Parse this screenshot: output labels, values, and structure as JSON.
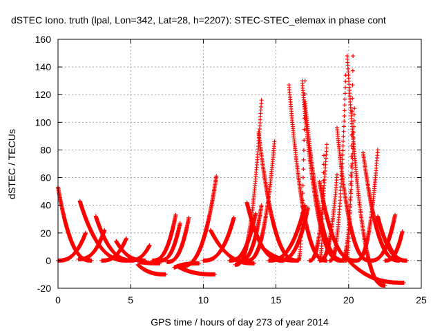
{
  "chart_data": {
    "type": "scatter",
    "title": "dSTEC Iono. truth (lpal, Lon=342, Lat=28, h=2207): STEC-STEC_elemax in phase cont",
    "xlabel": "GPS time / hours of day 273 of year 2014",
    "ylabel": "dSTEC  / TECUs",
    "xlim": [
      0,
      25
    ],
    "ylim": [
      -20,
      160
    ],
    "xticks": [
      0,
      5,
      10,
      15,
      20,
      25
    ],
    "yticks": [
      -20,
      0,
      20,
      40,
      60,
      80,
      100,
      120,
      140,
      160
    ],
    "grid": true,
    "marker": "+",
    "color": "#ff0000",
    "tracks": [
      {
        "t_start": 0.0,
        "t_end": 2.3,
        "v_start": 53,
        "v_end": 0,
        "shape": "descend"
      },
      {
        "t_start": 0.0,
        "t_end": 1.9,
        "v_start": 0,
        "v_end": 20,
        "shape": "ascend"
      },
      {
        "t_start": 1.5,
        "t_end": 4.8,
        "v_start": 43,
        "v_end": 0,
        "shape": "descend"
      },
      {
        "t_start": 1.4,
        "t_end": 3.2,
        "v_start": 1,
        "v_end": 22,
        "shape": "ascend"
      },
      {
        "t_start": 2.6,
        "t_end": 5.2,
        "v_start": 32,
        "v_end": 0,
        "shape": "descend"
      },
      {
        "t_start": 3.0,
        "t_end": 4.7,
        "v_start": 0,
        "v_end": 16,
        "shape": "ascend"
      },
      {
        "t_start": 4.0,
        "t_end": 6.0,
        "v_start": 14,
        "v_end": 0,
        "shape": "descend"
      },
      {
        "t_start": 4.9,
        "t_end": 6.3,
        "v_start": 0,
        "v_end": 11,
        "shape": "ascend"
      },
      {
        "t_start": 5.5,
        "t_end": 7.4,
        "v_start": -3,
        "v_end": -10,
        "shape": "descend"
      },
      {
        "t_start": 6.5,
        "t_end": 8.1,
        "v_start": 0,
        "v_end": 33,
        "shape": "ascend"
      },
      {
        "t_start": 7.0,
        "t_end": 8.4,
        "v_start": 0,
        "v_end": 27,
        "shape": "ascend"
      },
      {
        "t_start": 7.5,
        "t_end": 9.0,
        "v_start": -1,
        "v_end": 31,
        "shape": "ascend"
      },
      {
        "t_start": 8.5,
        "t_end": 10.9,
        "v_start": -4,
        "v_end": 61,
        "shape": "ascend"
      },
      {
        "t_start": 8.2,
        "t_end": 10.8,
        "v_start": -4,
        "v_end": -10,
        "shape": "descend"
      },
      {
        "t_start": 10.0,
        "t_end": 12.1,
        "v_start": 0,
        "v_end": 31,
        "shape": "ascend"
      },
      {
        "t_start": 10.5,
        "t_end": 13.5,
        "v_start": 22,
        "v_end": -2,
        "shape": "descend"
      },
      {
        "t_start": 11.8,
        "t_end": 13.6,
        "v_start": 0,
        "v_end": 34,
        "shape": "ascend"
      },
      {
        "t_start": 12.5,
        "t_end": 14.0,
        "v_start": 0,
        "v_end": 40,
        "shape": "ascend"
      },
      {
        "t_start": 12.2,
        "t_end": 14.0,
        "v_start": -3,
        "v_end": 116,
        "shape": "ascend"
      },
      {
        "t_start": 13.0,
        "t_end": 15.5,
        "v_start": 42,
        "v_end": 0,
        "shape": "descend"
      },
      {
        "t_start": 13.8,
        "t_end": 16.5,
        "v_start": 93,
        "v_end": 0,
        "shape": "descend"
      },
      {
        "t_start": 13.0,
        "t_end": 14.9,
        "v_start": 0,
        "v_end": 86,
        "shape": "ascend"
      },
      {
        "t_start": 14.5,
        "t_end": 17.0,
        "v_start": 0,
        "v_end": 40,
        "shape": "ascend"
      },
      {
        "t_start": 15.2,
        "t_end": 17.2,
        "v_start": 0,
        "v_end": 38,
        "shape": "ascend"
      },
      {
        "t_start": 15.9,
        "t_end": 18.5,
        "v_start": 127,
        "v_end": 0,
        "shape": "descend"
      },
      {
        "t_start": 16.5,
        "t_end": 17.0,
        "v_start": 0,
        "v_end": 130,
        "shape": "ascend"
      },
      {
        "t_start": 16.8,
        "t_end": 19.5,
        "v_start": 130,
        "v_end": 0,
        "shape": "descend"
      },
      {
        "t_start": 17.0,
        "t_end": 19.7,
        "v_start": 115,
        "v_end": 0,
        "shape": "descend"
      },
      {
        "t_start": 17.3,
        "t_end": 18.5,
        "v_start": 0,
        "v_end": 84,
        "shape": "ascend"
      },
      {
        "t_start": 18.0,
        "t_end": 18.3,
        "v_start": 0,
        "v_end": 76,
        "shape": "ascend"
      },
      {
        "t_start": 18.0,
        "t_end": 19.2,
        "v_start": 0,
        "v_end": 62,
        "shape": "ascend"
      },
      {
        "t_start": 18.0,
        "t_end": 20.5,
        "v_start": 57,
        "v_end": 0,
        "shape": "descend"
      },
      {
        "t_start": 18.7,
        "t_end": 19.8,
        "v_start": 0,
        "v_end": 134,
        "shape": "ascend"
      },
      {
        "t_start": 19.2,
        "t_end": 21.5,
        "v_start": 96,
        "v_end": 0,
        "shape": "descend"
      },
      {
        "t_start": 19.5,
        "t_end": 20.4,
        "v_start": 0,
        "v_end": 110,
        "shape": "ascend"
      },
      {
        "t_start": 19.8,
        "t_end": 20.3,
        "v_start": 0,
        "v_end": 148,
        "shape": "ascend"
      },
      {
        "t_start": 19.9,
        "t_end": 22.5,
        "v_start": 148,
        "v_end": -18,
        "shape": "descend"
      },
      {
        "t_start": 20.5,
        "t_end": 22.0,
        "v_start": 0,
        "v_end": 80,
        "shape": "ascend"
      },
      {
        "t_start": 21.0,
        "t_end": 23.5,
        "v_start": 78,
        "v_end": 0,
        "shape": "descend"
      },
      {
        "t_start": 21.5,
        "t_end": 23.2,
        "v_start": 0,
        "v_end": 33,
        "shape": "ascend"
      },
      {
        "t_start": 22.0,
        "t_end": 24.0,
        "v_start": 32,
        "v_end": 0,
        "shape": "descend"
      },
      {
        "t_start": 22.5,
        "t_end": 23.7,
        "v_start": 0,
        "v_end": 21,
        "shape": "ascend"
      },
      {
        "t_start": 22.7,
        "t_end": 24.0,
        "v_start": 13,
        "v_end": 0,
        "shape": "descend"
      },
      {
        "t_start": 20.0,
        "t_end": 23.8,
        "v_start": 0,
        "v_end": -16,
        "shape": "descend"
      },
      {
        "t_start": 14.0,
        "t_end": 16.5,
        "v_start": 10,
        "v_end": 0,
        "shape": "descend"
      },
      {
        "t_start": 8.0,
        "t_end": 9.7,
        "v_start": -5,
        "v_end": -2,
        "shape": "descend"
      },
      {
        "t_start": 5.6,
        "t_end": 7.0,
        "v_start": -1,
        "v_end": -2,
        "shape": "descend"
      }
    ]
  }
}
